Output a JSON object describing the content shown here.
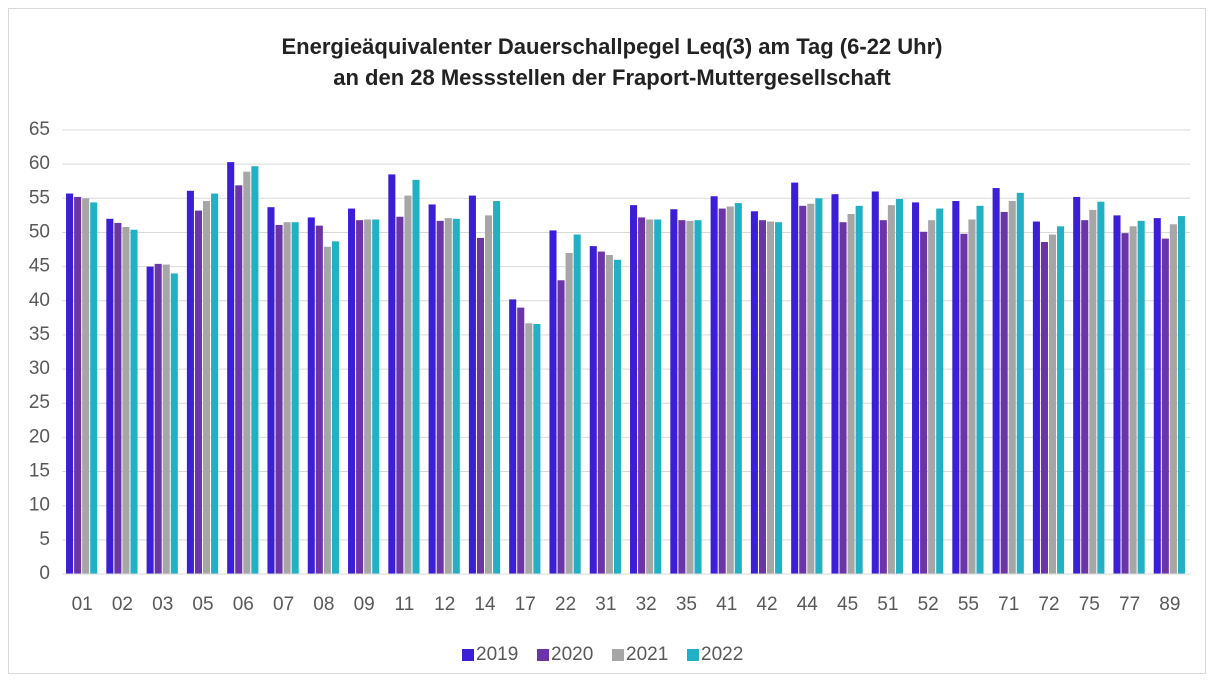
{
  "chart_data": {
    "type": "bar",
    "title": [
      "Energieäquivalenter Dauerschallpegel Leq(3) am Tag (6-22 Uhr)",
      "an den 28 Messstellen der Fraport-Muttergesellschaft"
    ],
    "categories": [
      "01",
      "02",
      "03",
      "05",
      "06",
      "07",
      "08",
      "09",
      "11",
      "12",
      "14",
      "17",
      "22",
      "31",
      "32",
      "35",
      "41",
      "42",
      "44",
      "45",
      "51",
      "52",
      "55",
      "71",
      "72",
      "75",
      "77",
      "89"
    ],
    "series": [
      {
        "name": "2019",
        "color": "#3a1fd6",
        "values": [
          55.7,
          52.0,
          45.0,
          56.1,
          60.3,
          53.7,
          52.2,
          53.5,
          58.5,
          54.1,
          55.4,
          40.2,
          50.3,
          48.0,
          54.0,
          53.4,
          55.3,
          53.1,
          57.3,
          55.6,
          56.0,
          54.4,
          54.6,
          56.5,
          51.6,
          55.2,
          52.5,
          52.1
        ]
      },
      {
        "name": "2020",
        "color": "#6b35a8",
        "values": [
          55.2,
          51.4,
          45.4,
          53.2,
          56.9,
          51.1,
          51.0,
          51.8,
          52.3,
          51.7,
          49.2,
          39.0,
          43.0,
          47.2,
          52.2,
          51.8,
          53.5,
          51.8,
          53.9,
          51.5,
          51.8,
          50.1,
          49.8,
          53.0,
          48.6,
          51.8,
          49.9,
          49.1
        ]
      },
      {
        "name": "2021",
        "color": "#a6a6a6",
        "values": [
          55.0,
          50.8,
          45.3,
          54.6,
          58.9,
          51.5,
          47.9,
          51.9,
          55.4,
          52.1,
          52.5,
          36.7,
          47.0,
          46.7,
          51.9,
          51.7,
          53.8,
          51.6,
          54.2,
          52.7,
          54.0,
          51.8,
          51.9,
          54.6,
          49.7,
          53.3,
          50.9,
          51.2
        ]
      },
      {
        "name": "2022",
        "color": "#21b0c4",
        "values": [
          54.4,
          50.4,
          44.0,
          55.7,
          59.7,
          51.5,
          48.7,
          51.9,
          57.7,
          52.0,
          54.6,
          36.6,
          49.7,
          46.0,
          51.9,
          51.8,
          54.3,
          51.5,
          55.0,
          53.9,
          54.9,
          53.5,
          53.9,
          55.8,
          50.9,
          54.5,
          51.7,
          52.4
        ]
      }
    ],
    "ylim": [
      0,
      65
    ],
    "yticks": [
      0,
      5,
      10,
      15,
      20,
      25,
      30,
      35,
      40,
      45,
      50,
      55,
      60,
      65
    ],
    "grid": true,
    "legend": "bottom"
  }
}
